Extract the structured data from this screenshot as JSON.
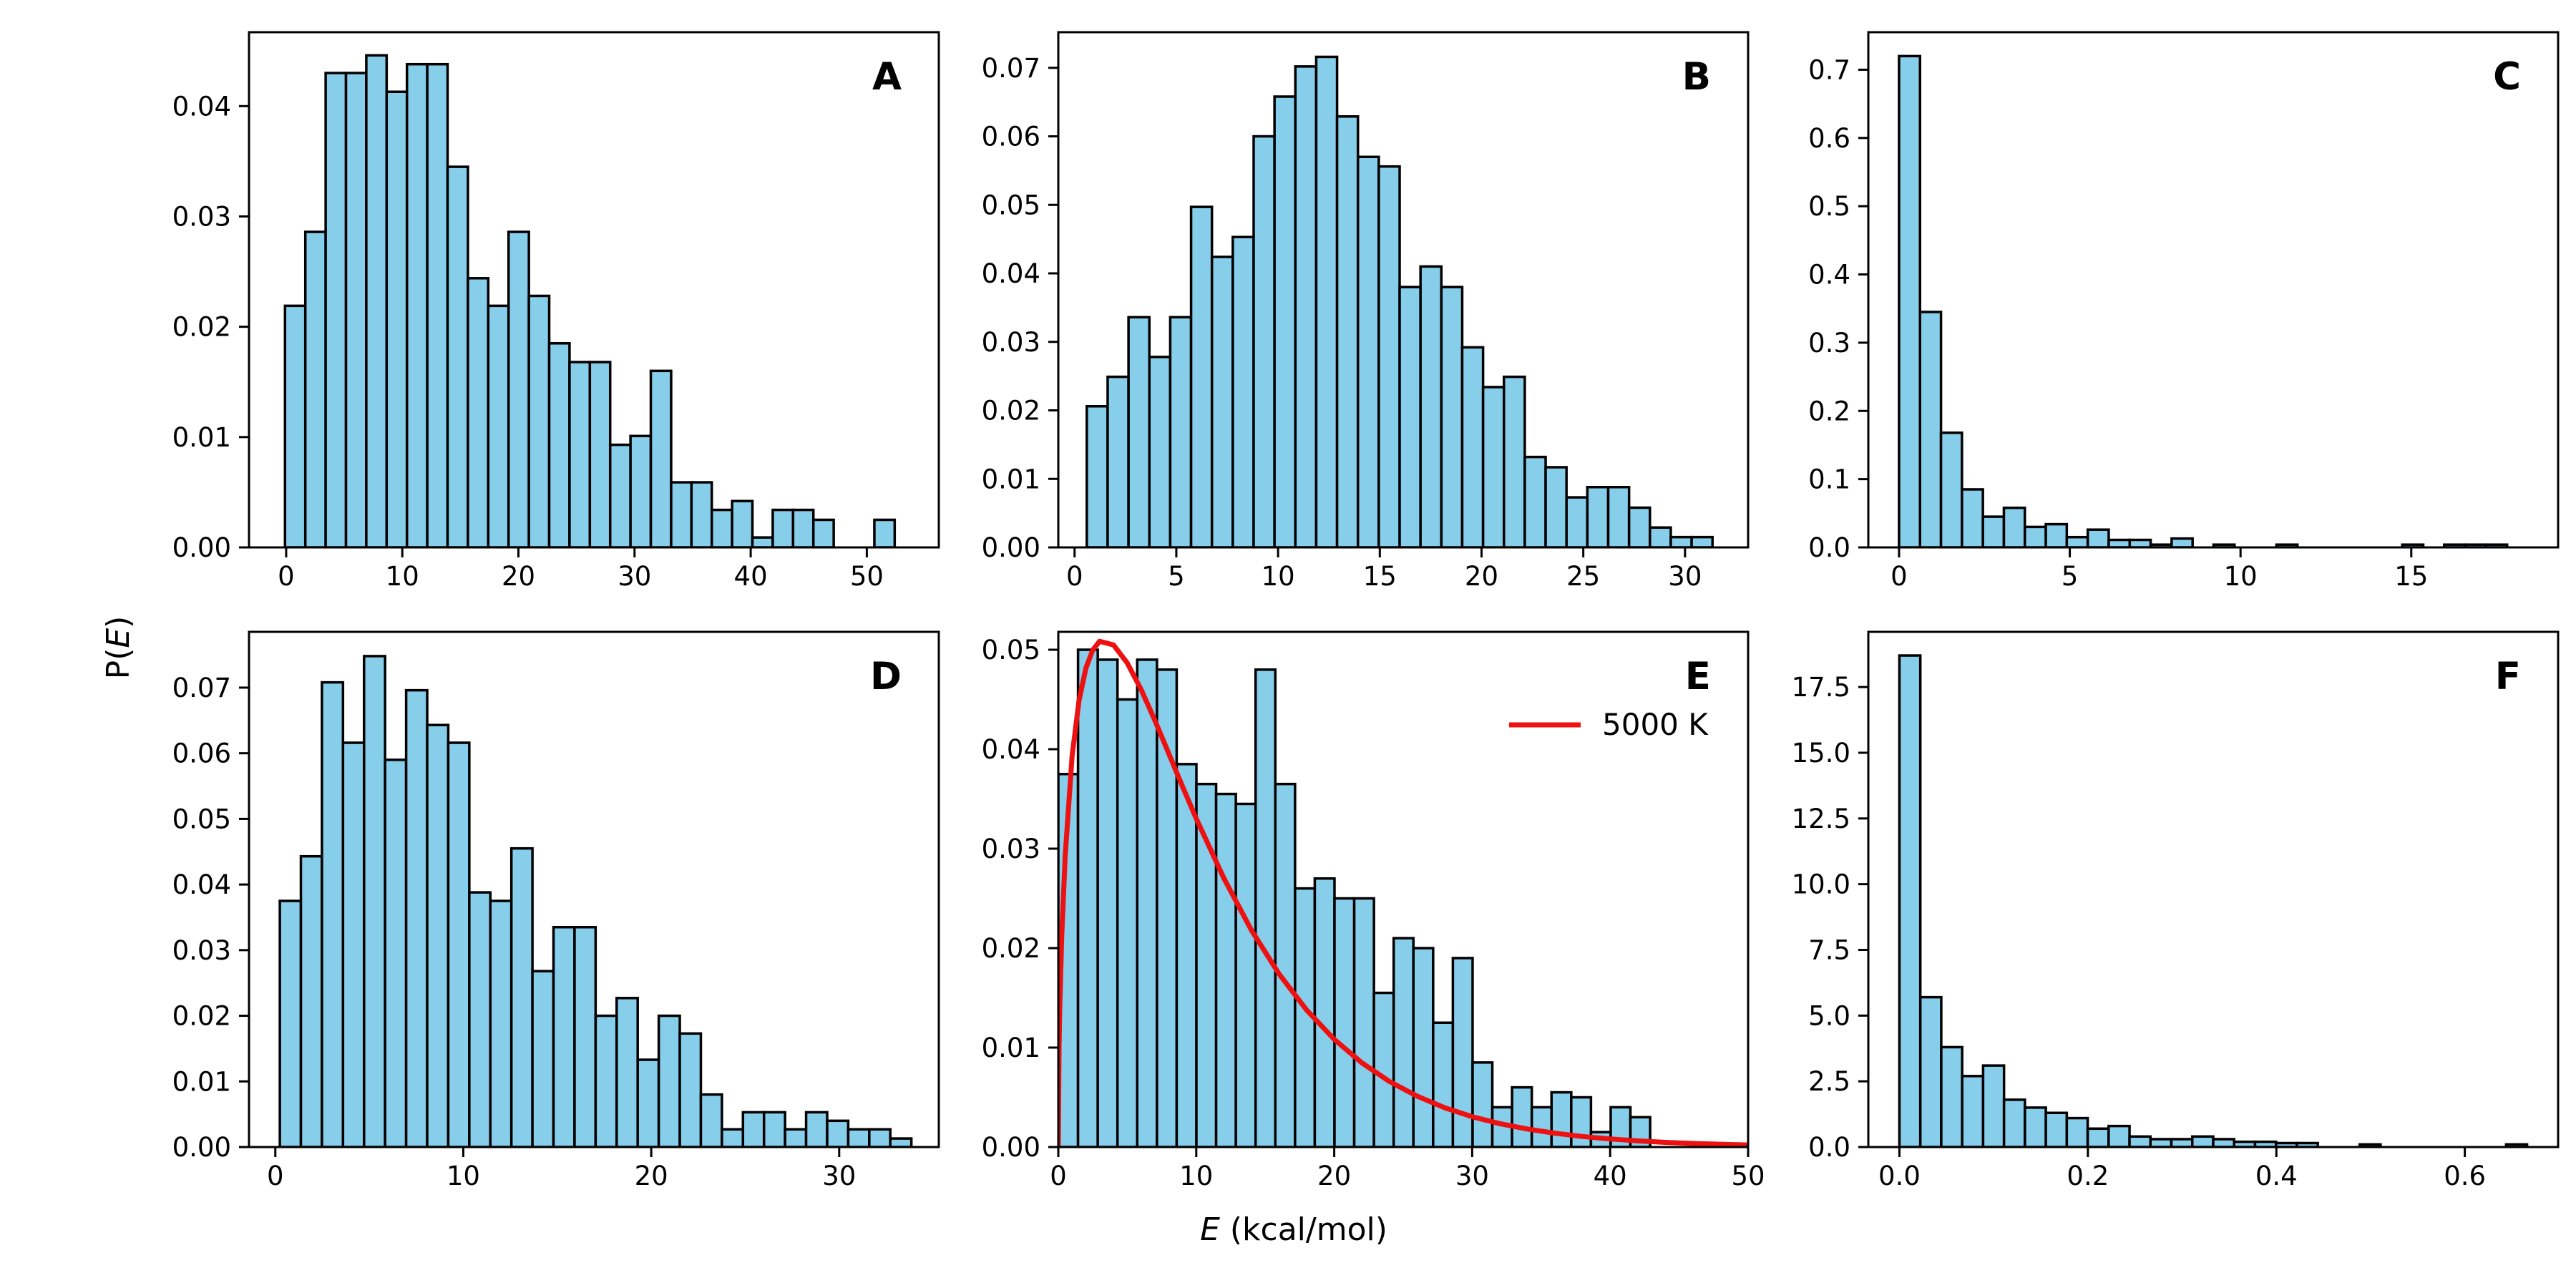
{
  "figure": {
    "xlabel": {
      "var": "E",
      "unit": " (kcal/mol)"
    },
    "ylabel": {
      "var": "E",
      "pre": "P(",
      "post": ")"
    },
    "bar_color": "#87ceeb",
    "edge_color": "#000000",
    "curve_color": "#ee1111"
  },
  "chart_data": [
    {
      "panel": "A",
      "type": "bar",
      "xlim": [
        -3.2,
        56.2
      ],
      "ylim": [
        0,
        0.0467
      ],
      "xticks": [
        0,
        10,
        20,
        30,
        40,
        50
      ],
      "xtick_labels": [
        "0",
        "10",
        "20",
        "30",
        "40",
        "50"
      ],
      "yticks": [
        0,
        0.01,
        0.02,
        0.03,
        0.04
      ],
      "ytick_labels": [
        "0.00",
        "0.01",
        "0.02",
        "0.03",
        "0.04"
      ],
      "bin_start": -0.1,
      "bin_width": 1.75,
      "values": [
        0.0219,
        0.0286,
        0.043,
        0.043,
        0.0446,
        0.0413,
        0.0438,
        0.0438,
        0.0345,
        0.0244,
        0.0219,
        0.0286,
        0.0228,
        0.0185,
        0.0168,
        0.0168,
        0.0093,
        0.0101,
        0.016,
        0.0059,
        0.0059,
        0.0034,
        0.0042,
        0.0009,
        0.0034,
        0.0034,
        0.0025,
        0.0,
        0.0,
        0.0025
      ]
    },
    {
      "panel": "B",
      "type": "bar",
      "xlim": [
        -0.8,
        33.1
      ],
      "ylim": [
        0,
        0.0752
      ],
      "xticks": [
        0,
        5,
        10,
        15,
        20,
        25,
        30
      ],
      "xtick_labels": [
        "0",
        "5",
        "10",
        "15",
        "20",
        "25",
        "30"
      ],
      "yticks": [
        0,
        0.01,
        0.02,
        0.03,
        0.04,
        0.05,
        0.06,
        0.07
      ],
      "ytick_labels": [
        "0.00",
        "0.01",
        "0.02",
        "0.03",
        "0.04",
        "0.05",
        "0.06",
        "0.07"
      ],
      "bin_start": 0.6,
      "bin_width": 1.025,
      "values": [
        0.0206,
        0.0249,
        0.0336,
        0.0278,
        0.0336,
        0.0497,
        0.0424,
        0.0453,
        0.06,
        0.0658,
        0.0702,
        0.0716,
        0.0629,
        0.057,
        0.0556,
        0.038,
        0.041,
        0.038,
        0.0292,
        0.0234,
        0.0249,
        0.0132,
        0.0117,
        0.0073,
        0.0088,
        0.0088,
        0.0058,
        0.0029,
        0.0015,
        0.0015
      ]
    },
    {
      "panel": "C",
      "type": "bar",
      "xlim": [
        -0.9,
        19.3
      ],
      "ylim": [
        0,
        0.755
      ],
      "xticks": [
        0,
        5,
        10,
        15
      ],
      "xtick_labels": [
        "0",
        "5",
        "10",
        "15"
      ],
      "yticks": [
        0,
        0.1,
        0.2,
        0.3,
        0.4,
        0.5,
        0.6,
        0.7
      ],
      "ytick_labels": [
        "0.0",
        "0.1",
        "0.2",
        "0.3",
        "0.4",
        "0.5",
        "0.6",
        "0.7"
      ],
      "bin_start": 0.0,
      "bin_width": 0.614,
      "values": [
        0.72,
        0.345,
        0.168,
        0.085,
        0.045,
        0.058,
        0.03,
        0.034,
        0.015,
        0.026,
        0.011,
        0.011,
        0.004,
        0.013,
        0.0,
        0.004,
        0.0,
        0.0,
        0.004,
        0.0,
        0.0,
        0.0,
        0.0,
        0.0,
        0.004,
        0.0,
        0.004,
        0.004,
        0.004,
        0.0
      ]
    },
    {
      "panel": "D",
      "type": "bar",
      "xlim": [
        -1.4,
        35.3
      ],
      "ylim": [
        0,
        0.0785
      ],
      "xticks": [
        0,
        10,
        20,
        30
      ],
      "xtick_labels": [
        "0",
        "10",
        "20",
        "30"
      ],
      "yticks": [
        0,
        0.01,
        0.02,
        0.03,
        0.04,
        0.05,
        0.06,
        0.07
      ],
      "ytick_labels": [
        "0.00",
        "0.01",
        "0.02",
        "0.03",
        "0.04",
        "0.05",
        "0.06",
        "0.07"
      ],
      "bin_start": 0.24,
      "bin_width": 1.12,
      "values": [
        0.0375,
        0.0443,
        0.0708,
        0.0616,
        0.0748,
        0.059,
        0.0696,
        0.0643,
        0.0616,
        0.0388,
        0.0375,
        0.0455,
        0.0268,
        0.0335,
        0.0335,
        0.02,
        0.0227,
        0.0133,
        0.02,
        0.0173,
        0.008,
        0.0027,
        0.0053,
        0.0053,
        0.0027,
        0.0053,
        0.004,
        0.0027,
        0.0027,
        0.0013
      ]
    },
    {
      "panel": "E",
      "type": "bar",
      "xlim": [
        0,
        50
      ],
      "ylim": [
        0,
        0.0518
      ],
      "xticks": [
        0,
        10,
        20,
        30,
        40,
        50
      ],
      "xtick_labels": [
        "0",
        "10",
        "20",
        "30",
        "40",
        "50"
      ],
      "yticks": [
        0,
        0.01,
        0.02,
        0.03,
        0.04,
        0.05
      ],
      "ytick_labels": [
        "0.00",
        "0.01",
        "0.02",
        "0.03",
        "0.04",
        "0.05"
      ],
      "bin_start": 0.0,
      "bin_width": 1.43,
      "values": [
        0.0375,
        0.05,
        0.049,
        0.045,
        0.049,
        0.048,
        0.0385,
        0.0365,
        0.0355,
        0.0345,
        0.048,
        0.0365,
        0.026,
        0.027,
        0.025,
        0.025,
        0.0155,
        0.021,
        0.02,
        0.0125,
        0.019,
        0.0085,
        0.004,
        0.006,
        0.004,
        0.0055,
        0.005,
        0.0015,
        0.004,
        0.003
      ],
      "legend": "5000 K",
      "curve": {
        "x": [
          0.05,
          0.1,
          0.25,
          0.5,
          1,
          1.5,
          2,
          2.5,
          3,
          4,
          5,
          6,
          7,
          8,
          9,
          10,
          12,
          14,
          16,
          18,
          20,
          22,
          24,
          26,
          28,
          30,
          32,
          34,
          36,
          38,
          40,
          42,
          44,
          46,
          48,
          50
        ],
        "y": [
          0.00972,
          0.01367,
          0.02126,
          0.02926,
          0.03932,
          0.04488,
          0.04816,
          0.04999,
          0.05085,
          0.05048,
          0.04866,
          0.046,
          0.04289,
          0.03959,
          0.03626,
          0.03302,
          0.02702,
          0.0218,
          0.0174,
          0.01378,
          0.01083,
          0.00847,
          0.0066,
          0.00512,
          0.00396,
          0.00305,
          0.00235,
          0.00181,
          0.00139,
          0.00106,
          0.00081,
          0.00062,
          0.00047,
          0.00036,
          0.00028,
          0.00021
        ]
      }
    },
    {
      "panel": "F",
      "type": "bar",
      "xlim": [
        -0.033,
        0.699
      ],
      "ylim": [
        0,
        19.6
      ],
      "xticks": [
        0,
        0.2,
        0.4,
        0.6
      ],
      "xtick_labels": [
        "0.0",
        "0.2",
        "0.4",
        "0.6"
      ],
      "yticks": [
        0,
        2.5,
        5,
        7.5,
        10,
        12.5,
        15,
        17.5
      ],
      "ytick_labels": [
        "0.0",
        "2.5",
        "5.0",
        "7.5",
        "10.0",
        "12.5",
        "15.0",
        "17.5"
      ],
      "bin_start": 0.0,
      "bin_width": 0.0222,
      "values": [
        18.7,
        5.7,
        3.8,
        2.7,
        3.1,
        1.8,
        1.5,
        1.3,
        1.1,
        0.7,
        0.8,
        0.4,
        0.3,
        0.3,
        0.4,
        0.3,
        0.2,
        0.2,
        0.15,
        0.15,
        0.0,
        0.0,
        0.1,
        0.0,
        0.0,
        0.0,
        0.0,
        0.0,
        0.0,
        0.1
      ]
    }
  ]
}
